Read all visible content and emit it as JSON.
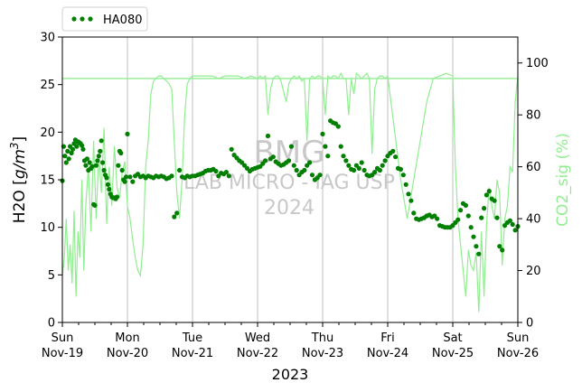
{
  "chart_data": {
    "type": "line",
    "xlabel": "2023",
    "ylabel": "H2O [g/m³]",
    "ylabel_right": "CO2_sig (%)",
    "x_ticks": [
      "Sun\nNov-19",
      "Mon\nNov-20",
      "Tue\nNov-21",
      "Wed\nNov-22",
      "Thu\nNov-23",
      "Fri\nNov-24",
      "Sat\nNov-25",
      "Sun\nNov-26"
    ],
    "xlim": [
      "2023-11-19 00:00",
      "2023-11-26 00:00"
    ],
    "ylim": [
      0,
      30
    ],
    "y_ticks": [
      0,
      5,
      10,
      15,
      20,
      25,
      30
    ],
    "ylim_right": [
      0,
      110
    ],
    "y_ticks_right": [
      0,
      20,
      40,
      60,
      80,
      100
    ],
    "grid": "vertical",
    "legend": {
      "placement": "top-left, above plot",
      "entries": [
        "HA080"
      ]
    },
    "watermark": [
      "BMG",
      "LAB MICRO - IAG USP",
      "2024"
    ],
    "colors": {
      "h2o": "#007f00",
      "co2": "#90ee90",
      "watermark": "#c8c8c8"
    },
    "co2_reference_line": 94,
    "series": [
      {
        "name": "HA080",
        "axis": "left",
        "style": "dots",
        "x_day": [
          0.0,
          0.02,
          0.04,
          0.06,
          0.08,
          0.1,
          0.12,
          0.14,
          0.16,
          0.18,
          0.2,
          0.22,
          0.24,
          0.26,
          0.28,
          0.3,
          0.32,
          0.34,
          0.36,
          0.38,
          0.4,
          0.42,
          0.44,
          0.46,
          0.48,
          0.5,
          0.52,
          0.54,
          0.56,
          0.58,
          0.6,
          0.62,
          0.64,
          0.66,
          0.68,
          0.7,
          0.72,
          0.74,
          0.76,
          0.78,
          0.8,
          0.82,
          0.84,
          0.86,
          0.88,
          0.9,
          0.92,
          0.94,
          0.96,
          0.98,
          1.0,
          1.04,
          1.08,
          1.12,
          1.16,
          1.2,
          1.24,
          1.28,
          1.32,
          1.36,
          1.4,
          1.44,
          1.48,
          1.52,
          1.56,
          1.6,
          1.64,
          1.68,
          1.72,
          1.76,
          1.8,
          1.84,
          1.88,
          1.92,
          1.96,
          2.0,
          2.04,
          2.08,
          2.12,
          2.16,
          2.2,
          2.24,
          2.28,
          2.32,
          2.36,
          2.4,
          2.44,
          2.48,
          2.52,
          2.56,
          2.6,
          2.64,
          2.68,
          2.72,
          2.76,
          2.8,
          2.84,
          2.88,
          2.92,
          2.96,
          3.0,
          3.04,
          3.08,
          3.12,
          3.16,
          3.2,
          3.24,
          3.28,
          3.32,
          3.36,
          3.4,
          3.44,
          3.48,
          3.52,
          3.56,
          3.6,
          3.64,
          3.68,
          3.72,
          3.76,
          3.8,
          3.84,
          3.88,
          3.92,
          3.96,
          4.0,
          4.04,
          4.08,
          4.12,
          4.16,
          4.2,
          4.24,
          4.28,
          4.32,
          4.36,
          4.4,
          4.44,
          4.48,
          4.52,
          4.56,
          4.6,
          4.64,
          4.68,
          4.72,
          4.76,
          4.8,
          4.84,
          4.88,
          4.92,
          4.96,
          5.0,
          5.04,
          5.08,
          5.12,
          5.16,
          5.2,
          5.24,
          5.28,
          5.32,
          5.36,
          5.4,
          5.44,
          5.48,
          5.52,
          5.56,
          5.6,
          5.64,
          5.68,
          5.72,
          5.76,
          5.8,
          5.84,
          5.88,
          5.92,
          5.96,
          6.0,
          6.04,
          6.08,
          6.12,
          6.16,
          6.2,
          6.24,
          6.28,
          6.32,
          6.36,
          6.4,
          6.44,
          6.48,
          6.52,
          6.56,
          6.6,
          6.64,
          6.68,
          6.72,
          6.76,
          6.8,
          6.84,
          6.88,
          6.92,
          6.96,
          7.0
        ],
        "y": [
          14.9,
          18.5,
          17.5,
          16.8,
          18.0,
          17.2,
          18.5,
          17.8,
          18.2,
          18.8,
          19.2,
          18.5,
          19.0,
          18.9,
          18.8,
          18.6,
          18.2,
          17.0,
          16.5,
          17.2,
          16.0,
          16.8,
          16.2,
          16.4,
          12.4,
          12.3,
          16.5,
          17.0,
          17.5,
          18.0,
          19.1,
          16.8,
          16.0,
          15.5,
          15.2,
          14.5,
          14.0,
          13.5,
          13.2,
          13.1,
          13.1,
          13.0,
          13.2,
          16.5,
          18.0,
          17.8,
          16.0,
          15.0,
          14.8,
          15.3,
          19.8,
          15.3,
          14.8,
          15.4,
          15.6,
          15.3,
          15.4,
          15.2,
          15.4,
          15.3,
          15.2,
          15.4,
          15.3,
          15.4,
          15.3,
          15.1,
          15.2,
          15.4,
          11.1,
          11.5,
          16.0,
          15.3,
          15.2,
          15.4,
          15.3,
          15.4,
          15.4,
          15.5,
          15.6,
          15.7,
          15.9,
          16.0,
          16.0,
          16.1,
          15.9,
          15.4,
          15.7,
          15.6,
          15.8,
          15.4,
          18.2,
          17.6,
          17.3,
          17.0,
          16.8,
          16.5,
          16.2,
          15.9,
          16.1,
          16.2,
          16.3,
          16.4,
          16.7,
          17.0,
          19.6,
          17.2,
          17.4,
          16.9,
          16.7,
          16.5,
          16.6,
          16.8,
          17.0,
          18.5,
          16.5,
          16.0,
          15.5,
          15.8,
          16.0,
          16.5,
          16.8,
          15.5,
          15.0,
          15.2,
          15.5,
          19.8,
          18.5,
          17.5,
          21.2,
          21.0,
          20.9,
          20.6,
          18.5,
          17.5,
          17.0,
          16.5,
          16.1,
          16.0,
          16.5,
          16.2,
          16.8,
          16.0,
          15.5,
          15.4,
          15.5,
          15.8,
          16.2,
          16.0,
          16.5,
          17.0,
          17.5,
          17.8,
          18.0,
          17.4,
          16.2,
          16.1,
          15.5,
          14.5,
          13.5,
          12.8,
          11.5,
          10.9,
          10.8,
          10.9,
          11.0,
          11.2,
          11.3,
          11.1,
          11.2,
          10.9,
          10.2,
          10.1,
          10.0,
          10.0,
          10.0,
          10.2,
          10.5,
          10.8,
          11.8,
          12.5,
          12.3,
          11.2,
          10.0,
          9.0,
          8.0,
          7.2,
          11.0,
          12.0,
          13.4,
          13.8,
          13.0,
          12.8,
          11.0,
          8.0,
          7.6,
          10.2,
          10.5,
          10.7,
          10.3,
          9.7,
          10.1
        ]
      },
      {
        "name": "",
        "axis": "right",
        "style": "line",
        "x_day": [
          0.0,
          0.03,
          0.06,
          0.09,
          0.12,
          0.15,
          0.18,
          0.21,
          0.24,
          0.27,
          0.3,
          0.33,
          0.36,
          0.4,
          0.44,
          0.48,
          0.52,
          0.56,
          0.6,
          0.64,
          0.68,
          0.72,
          0.76,
          0.8,
          0.84,
          0.88,
          0.92,
          0.96,
          1.0,
          1.04,
          1.08,
          1.12,
          1.16,
          1.2,
          1.24,
          1.28,
          1.32,
          1.36,
          1.4,
          1.44,
          1.48,
          1.52,
          1.56,
          1.6,
          1.64,
          1.68,
          1.72,
          1.76,
          1.8,
          1.84,
          1.88,
          1.92,
          1.96,
          2.0,
          2.1,
          2.2,
          2.3,
          2.4,
          2.5,
          2.6,
          2.7,
          2.8,
          2.9,
          3.0,
          3.04,
          3.08,
          3.12,
          3.16,
          3.2,
          3.24,
          3.28,
          3.32,
          3.36,
          3.4,
          3.44,
          3.48,
          3.52,
          3.56,
          3.6,
          3.64,
          3.68,
          3.72,
          3.76,
          3.8,
          3.84,
          3.88,
          3.92,
          3.96,
          4.0,
          4.04,
          4.08,
          4.12,
          4.16,
          4.2,
          4.24,
          4.28,
          4.32,
          4.36,
          4.4,
          4.44,
          4.48,
          4.52,
          4.56,
          4.6,
          4.64,
          4.68,
          4.72,
          4.76,
          4.8,
          4.84,
          4.88,
          4.92,
          4.96,
          5.0,
          5.1,
          5.2,
          5.3,
          5.4,
          5.5,
          5.6,
          5.7,
          5.8,
          5.9,
          6.0,
          6.04,
          6.08,
          6.12,
          6.16,
          6.2,
          6.24,
          6.28,
          6.32,
          6.36,
          6.4,
          6.44,
          6.48,
          6.52,
          6.56,
          6.6,
          6.64,
          6.68,
          6.72,
          6.76,
          6.8,
          6.84,
          6.88,
          6.92,
          6.96,
          7.0
        ],
        "y": [
          18,
          25,
          40,
          20,
          30,
          15,
          43,
          10,
          35,
          25,
          55,
          20,
          45,
          60,
          35,
          70,
          40,
          65,
          50,
          75,
          38,
          60,
          45,
          68,
          52,
          48,
          58,
          62,
          45,
          40,
          32,
          25,
          20,
          18,
          30,
          60,
          70,
          88,
          93,
          94,
          95,
          95,
          94,
          93,
          92,
          90,
          70,
          50,
          40,
          55,
          80,
          92,
          94,
          95,
          95,
          95,
          95,
          94,
          95,
          95,
          95,
          94,
          95,
          94,
          95,
          94,
          95,
          80,
          90,
          94,
          95,
          95,
          93,
          89,
          85,
          92,
          94,
          95,
          94,
          95,
          93,
          94,
          70,
          94,
          95,
          94,
          95,
          95,
          94,
          80,
          95,
          94,
          95,
          95,
          94,
          96,
          94,
          94,
          80,
          94,
          88,
          96,
          95,
          94,
          95,
          96,
          94,
          65,
          90,
          94,
          95,
          95,
          94,
          95,
          75,
          55,
          40,
          55,
          70,
          85,
          94,
          95,
          96,
          95,
          60,
          40,
          30,
          20,
          10,
          28,
          22,
          20,
          27,
          4,
          35,
          10,
          38,
          52,
          45,
          40,
          55,
          50,
          22,
          40,
          45,
          60,
          58,
          85,
          95
        ]
      }
    ]
  }
}
